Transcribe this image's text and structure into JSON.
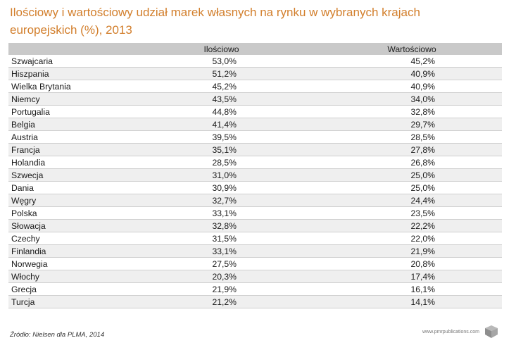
{
  "title": "Ilościowy i wartościowy udział marek własnych na rynku w wybranych krajach europejskich (%), 2013",
  "columns": [
    "",
    "Ilościowo",
    "Wartościowo"
  ],
  "rows": [
    {
      "country": "Szwajcaria",
      "ilosciowo": "53,0%",
      "wartosciowo": "45,2%"
    },
    {
      "country": "Hiszpania",
      "ilosciowo": "51,2%",
      "wartosciowo": "40,9%"
    },
    {
      "country": "Wielka Brytania",
      "ilosciowo": "45,2%",
      "wartosciowo": "40,9%"
    },
    {
      "country": "Niemcy",
      "ilosciowo": "43,5%",
      "wartosciowo": "34,0%"
    },
    {
      "country": "Portugalia",
      "ilosciowo": "44,8%",
      "wartosciowo": "32,8%"
    },
    {
      "country": "Belgia",
      "ilosciowo": "41,4%",
      "wartosciowo": "29,7%"
    },
    {
      "country": "Austria",
      "ilosciowo": "39,5%",
      "wartosciowo": "28,5%"
    },
    {
      "country": "Francja",
      "ilosciowo": "35,1%",
      "wartosciowo": "27,8%"
    },
    {
      "country": "Holandia",
      "ilosciowo": "28,5%",
      "wartosciowo": "26,8%"
    },
    {
      "country": "Szwecja",
      "ilosciowo": "31,0%",
      "wartosciowo": "25,0%"
    },
    {
      "country": "Dania",
      "ilosciowo": "30,9%",
      "wartosciowo": "25,0%"
    },
    {
      "country": "Węgry",
      "ilosciowo": "32,7%",
      "wartosciowo": "24,4%"
    },
    {
      "country": "Polska",
      "ilosciowo": "33,1%",
      "wartosciowo": "23,5%"
    },
    {
      "country": "Słowacja",
      "ilosciowo": "32,8%",
      "wartosciowo": "22,2%"
    },
    {
      "country": "Czechy",
      "ilosciowo": "31,5%",
      "wartosciowo": "22,0%"
    },
    {
      "country": "Finlandia",
      "ilosciowo": "33,1%",
      "wartosciowo": "21,9%"
    },
    {
      "country": "Norwegia",
      "ilosciowo": "27,5%",
      "wartosciowo": "20,8%"
    },
    {
      "country": "Włochy",
      "ilosciowo": "20,3%",
      "wartosciowo": "17,4%"
    },
    {
      "country": "Grecja",
      "ilosciowo": "21,9%",
      "wartosciowo": "16,1%"
    },
    {
      "country": "Turcja",
      "ilosciowo": "21,2%",
      "wartosciowo": "14,1%"
    }
  ],
  "source": "Źródło: Nielsen dla PLMA, 2014",
  "site": "www.pmrpublications.com",
  "logo_icon": "cube-logo-icon",
  "colors": {
    "title": "#d27e2b",
    "header_bg": "#c9c9c9",
    "alt_row": "#efefef"
  },
  "chart_data": {
    "type": "table",
    "title": "Ilościowy i wartościowy udział marek własnych na rynku w wybranych krajach europejskich (%), 2013",
    "columns": [
      "",
      "Ilościowo",
      "Wartościowo"
    ],
    "categories": [
      "Szwajcaria",
      "Hiszpania",
      "Wielka Brytania",
      "Niemcy",
      "Portugalia",
      "Belgia",
      "Austria",
      "Francja",
      "Holandia",
      "Szwecja",
      "Dania",
      "Węgry",
      "Polska",
      "Słowacja",
      "Czechy",
      "Finlandia",
      "Norwegia",
      "Włochy",
      "Grecja",
      "Turcja"
    ],
    "series": [
      {
        "name": "Ilościowo",
        "values": [
          53.0,
          51.2,
          45.2,
          43.5,
          44.8,
          41.4,
          39.5,
          35.1,
          28.5,
          31.0,
          30.9,
          32.7,
          33.1,
          32.8,
          31.5,
          33.1,
          27.5,
          20.3,
          21.9,
          21.2
        ]
      },
      {
        "name": "Wartościowo",
        "values": [
          45.2,
          40.9,
          40.9,
          34.0,
          32.8,
          29.7,
          28.5,
          27.8,
          26.8,
          25.0,
          25.0,
          24.4,
          23.5,
          22.2,
          22.0,
          21.9,
          20.8,
          17.4,
          16.1,
          14.1
        ]
      }
    ]
  }
}
